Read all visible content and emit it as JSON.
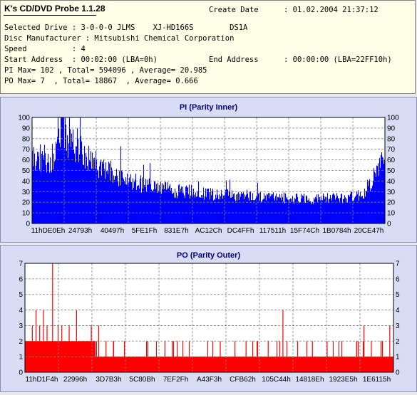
{
  "app": {
    "title": "K's CD/DVD Probe 1.1.28"
  },
  "info": {
    "create_date_label": "Create Date",
    "create_date_value": ": 01.02.2004 21:37:12",
    "drive_line": "Selected Drive : 3-0-0-0 JLMS    XJ-HD166S        DS1A",
    "manufacturer_line": "Disc Manufacturer : Mitsubishi Chemical Corporation",
    "speed_line": "Speed          : 4",
    "start_line": "Start Address  : 00:02:00 (LBA=0h)",
    "end_label": "End Address",
    "end_value": ": 00:00:00 (LBA=22FF10h)",
    "pi_line": "PI Max= 102 , Total= 594096 , Average= 20.985",
    "po_line": "PO Max= 7  , Total= 18867  , Average= 0.666"
  },
  "chart_data": [
    {
      "type": "area",
      "title": "PI (Parity Inner)",
      "ylim": [
        0,
        100
      ],
      "yticks": [
        0,
        10,
        20,
        30,
        40,
        50,
        60,
        70,
        80,
        90,
        100
      ],
      "xtick_labels": [
        "11hDE0Eh",
        "24793h",
        "40497h",
        "5FE1Fh",
        "831E7h",
        "AC12Ch",
        "DC4FFh",
        "117511h",
        "15F74Ch",
        "1B0784h",
        "20CE47h"
      ],
      "grid": true,
      "color": "#0000ff",
      "envelope": [
        [
          0,
          62
        ],
        [
          0.05,
          60
        ],
        [
          0.07,
          68
        ],
        [
          0.085,
          85
        ],
        [
          0.1,
          78
        ],
        [
          0.13,
          70
        ],
        [
          0.16,
          60
        ],
        [
          0.2,
          52
        ],
        [
          0.25,
          44
        ],
        [
          0.3,
          38
        ],
        [
          0.35,
          34
        ],
        [
          0.4,
          31
        ],
        [
          0.45,
          30
        ],
        [
          0.5,
          28
        ],
        [
          0.55,
          27
        ],
        [
          0.6,
          26
        ],
        [
          0.65,
          25
        ],
        [
          0.7,
          24
        ],
        [
          0.75,
          24
        ],
        [
          0.8,
          23
        ],
        [
          0.85,
          24
        ],
        [
          0.9,
          25
        ],
        [
          0.94,
          28
        ],
        [
          0.96,
          40
        ],
        [
          0.985,
          55
        ],
        [
          1.0,
          60
        ]
      ]
    },
    {
      "type": "bar",
      "title": "PO (Parity Outer)",
      "ylim": [
        0,
        7
      ],
      "yticks": [
        0,
        1,
        2,
        3,
        4,
        5,
        6,
        7
      ],
      "xtick_labels": [
        "11hD1F4h",
        "22996h",
        "3D7B3h",
        "5C80Bh",
        "7EF2Fh",
        "A43F3h",
        "CFB62h",
        "105C44h",
        "14818Eh",
        "1923E5h",
        "1E6115h"
      ],
      "grid": true,
      "color": "#ff0000",
      "baseline": 1,
      "early_level": 2,
      "early_until": 0.19,
      "spikes": [
        [
          0.02,
          3
        ],
        [
          0.03,
          4
        ],
        [
          0.04,
          3
        ],
        [
          0.05,
          4
        ],
        [
          0.06,
          3
        ],
        [
          0.075,
          7
        ],
        [
          0.09,
          3
        ],
        [
          0.1,
          3
        ],
        [
          0.12,
          3
        ],
        [
          0.14,
          4
        ],
        [
          0.16,
          2
        ],
        [
          0.18,
          3
        ],
        [
          0.2,
          3
        ],
        [
          0.22,
          2
        ],
        [
          0.24,
          2
        ],
        [
          0.27,
          2
        ],
        [
          0.33,
          2
        ],
        [
          0.38,
          2
        ],
        [
          0.4,
          2
        ],
        [
          0.53,
          2
        ],
        [
          0.57,
          2
        ],
        [
          0.6,
          2
        ],
        [
          0.63,
          2
        ],
        [
          0.66,
          2
        ],
        [
          0.7,
          4
        ],
        [
          0.74,
          2
        ],
        [
          0.78,
          2
        ],
        [
          0.82,
          2
        ],
        [
          0.86,
          2
        ],
        [
          0.9,
          2
        ],
        [
          0.92,
          3
        ],
        [
          0.94,
          2
        ],
        [
          0.97,
          2
        ],
        [
          0.99,
          3
        ]
      ]
    }
  ]
}
